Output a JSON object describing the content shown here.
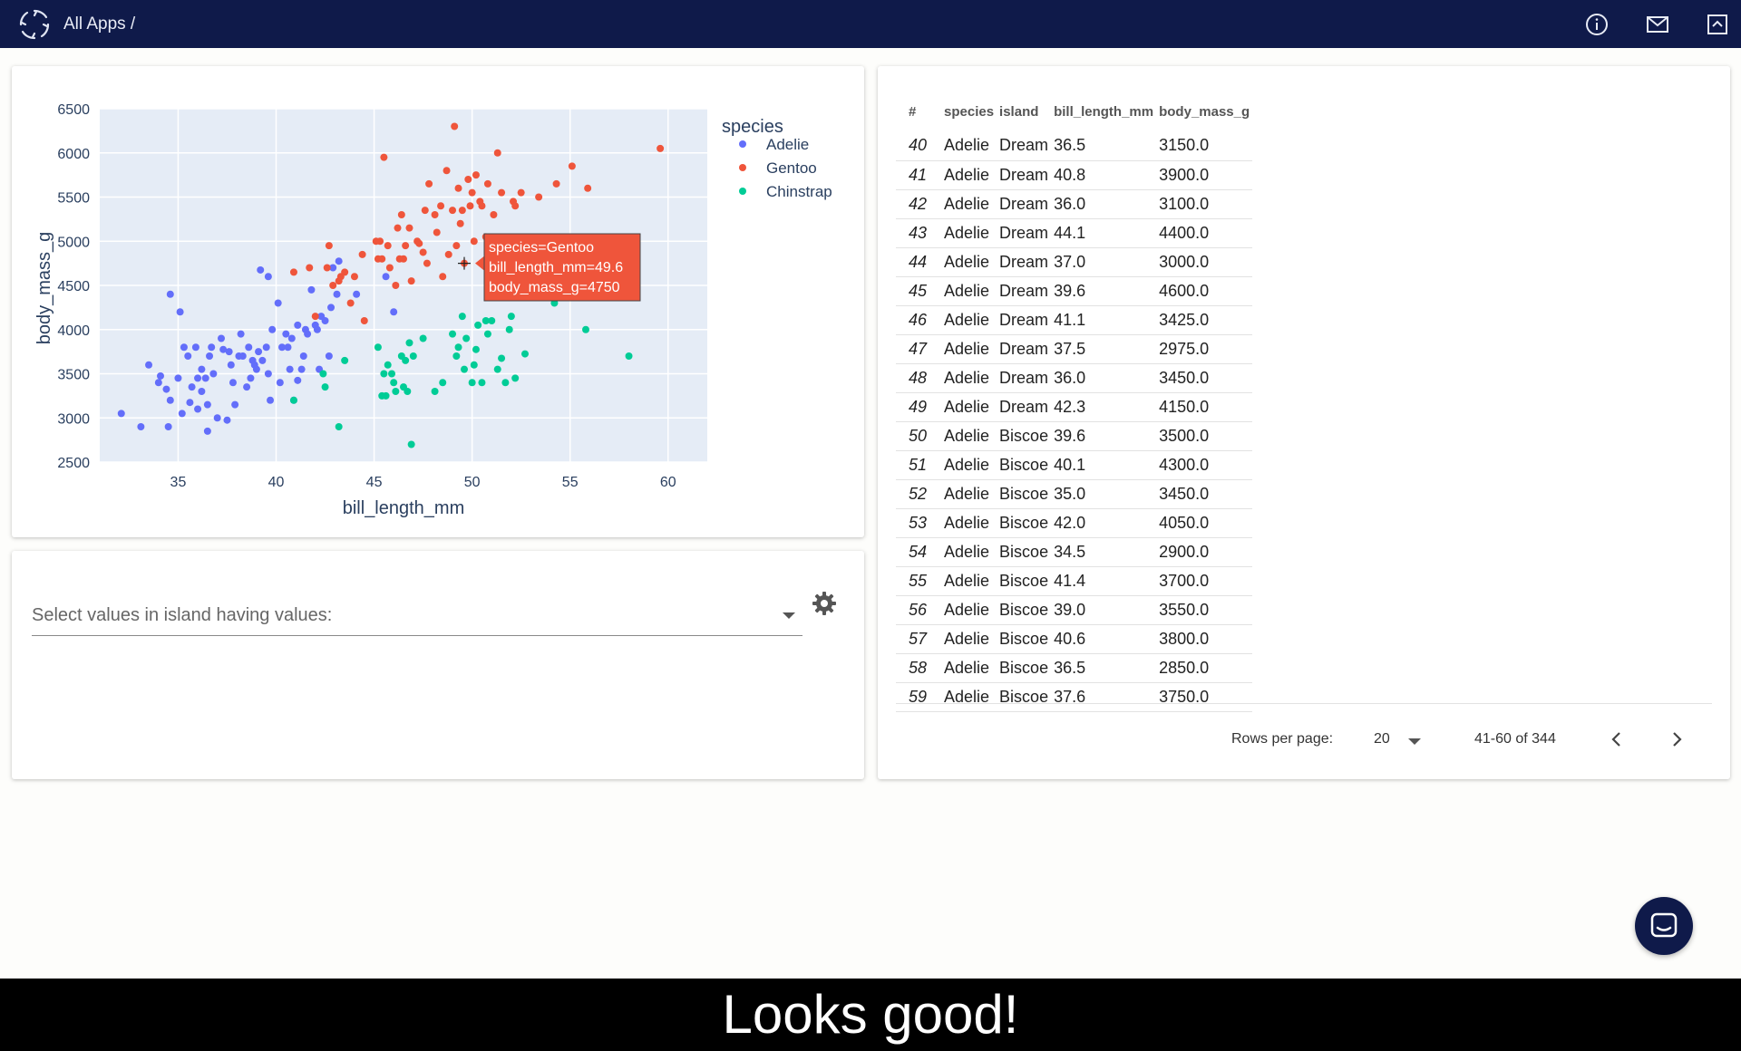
{
  "header": {
    "breadcrumb": "All Apps /",
    "icons": [
      "info-icon",
      "mail-icon",
      "collapse-icon"
    ],
    "bg_color": "#0f1a4a"
  },
  "chart_data": {
    "type": "scatter",
    "xlabel": "bill_length_mm",
    "ylabel": "body_mass_g",
    "xlim": [
      31,
      62
    ],
    "ylim": [
      2500,
      6500
    ],
    "xticks": [
      35,
      40,
      45,
      50,
      55,
      60
    ],
    "yticks": [
      2500,
      3000,
      3500,
      4000,
      4500,
      5000,
      5500,
      6000,
      6500
    ],
    "grid": true,
    "legend_title": "species",
    "legend_position": "top-right",
    "series": [
      {
        "name": "Adelie",
        "color": "#636efa",
        "points": [
          [
            32.1,
            3050
          ],
          [
            33.1,
            2900
          ],
          [
            33.5,
            3600
          ],
          [
            34.0,
            3400
          ],
          [
            34.1,
            3475
          ],
          [
            34.4,
            3325
          ],
          [
            34.5,
            2900
          ],
          [
            34.6,
            3200
          ],
          [
            34.6,
            4400
          ],
          [
            35.0,
            3450
          ],
          [
            35.1,
            4200
          ],
          [
            35.2,
            3050
          ],
          [
            35.3,
            3800
          ],
          [
            35.5,
            3700
          ],
          [
            35.6,
            3175
          ],
          [
            35.7,
            3350
          ],
          [
            35.9,
            3800
          ],
          [
            36.0,
            3100
          ],
          [
            36.0,
            3450
          ],
          [
            36.2,
            3550
          ],
          [
            36.2,
            3300
          ],
          [
            36.4,
            3450
          ],
          [
            36.5,
            3150
          ],
          [
            36.5,
            2850
          ],
          [
            36.6,
            3700
          ],
          [
            36.7,
            3800
          ],
          [
            36.8,
            3500
          ],
          [
            37.0,
            3000
          ],
          [
            37.2,
            3900
          ],
          [
            37.3,
            3775
          ],
          [
            37.5,
            2975
          ],
          [
            37.6,
            3750
          ],
          [
            37.7,
            3600
          ],
          [
            37.8,
            3400
          ],
          [
            37.9,
            3150
          ],
          [
            38.1,
            3700
          ],
          [
            38.2,
            3950
          ],
          [
            38.3,
            3700
          ],
          [
            38.5,
            3350
          ],
          [
            38.6,
            3800
          ],
          [
            38.7,
            3450
          ],
          [
            38.8,
            3650
          ],
          [
            38.9,
            3600
          ],
          [
            39.0,
            3550
          ],
          [
            39.1,
            3750
          ],
          [
            39.2,
            4675
          ],
          [
            39.3,
            3650
          ],
          [
            39.5,
            3800
          ],
          [
            39.6,
            3500
          ],
          [
            39.6,
            4600
          ],
          [
            39.7,
            3200
          ],
          [
            39.8,
            4000
          ],
          [
            40.1,
            4300
          ],
          [
            40.2,
            3400
          ],
          [
            40.3,
            3800
          ],
          [
            40.5,
            3950
          ],
          [
            40.6,
            3800
          ],
          [
            40.7,
            3550
          ],
          [
            40.8,
            3900
          ],
          [
            40.9,
            3200
          ],
          [
            41.1,
            3425
          ],
          [
            41.1,
            4050
          ],
          [
            41.3,
            3550
          ],
          [
            41.4,
            3700
          ],
          [
            41.5,
            4000
          ],
          [
            41.6,
            3950
          ],
          [
            41.8,
            4450
          ],
          [
            42.0,
            4050
          ],
          [
            42.1,
            4000
          ],
          [
            42.2,
            3550
          ],
          [
            42.3,
            4150
          ],
          [
            42.5,
            4100
          ],
          [
            42.7,
            3700
          ],
          [
            42.8,
            4250
          ],
          [
            42.9,
            4700
          ],
          [
            43.1,
            4400
          ],
          [
            43.2,
            4775
          ],
          [
            44.1,
            4400
          ],
          [
            45.6,
            4600
          ],
          [
            46.0,
            4200
          ]
        ]
      },
      {
        "name": "Gentoo",
        "color": "#ef553b",
        "points": [
          [
            40.9,
            4650
          ],
          [
            41.7,
            4700
          ],
          [
            42.0,
            4150
          ],
          [
            42.6,
            4700
          ],
          [
            42.7,
            4950
          ],
          [
            42.9,
            4500
          ],
          [
            43.2,
            4550
          ],
          [
            43.3,
            4600
          ],
          [
            43.5,
            4650
          ],
          [
            43.8,
            4300
          ],
          [
            44.0,
            4600
          ],
          [
            44.4,
            4850
          ],
          [
            44.5,
            4100
          ],
          [
            45.1,
            5000
          ],
          [
            45.2,
            4800
          ],
          [
            45.3,
            5000
          ],
          [
            45.4,
            4800
          ],
          [
            45.5,
            5950
          ],
          [
            45.7,
            4950
          ],
          [
            45.8,
            4700
          ],
          [
            46.1,
            4500
          ],
          [
            46.2,
            5150
          ],
          [
            46.3,
            4800
          ],
          [
            46.4,
            5300
          ],
          [
            46.5,
            4800
          ],
          [
            46.6,
            4950
          ],
          [
            46.8,
            5150
          ],
          [
            46.9,
            4550
          ],
          [
            47.2,
            5000
          ],
          [
            47.3,
            4975
          ],
          [
            47.5,
            4875
          ],
          [
            47.6,
            5350
          ],
          [
            47.7,
            4750
          ],
          [
            47.8,
            5650
          ],
          [
            48.1,
            5300
          ],
          [
            48.2,
            5100
          ],
          [
            48.4,
            5400
          ],
          [
            48.5,
            4600
          ],
          [
            48.7,
            5800
          ],
          [
            48.8,
            4850
          ],
          [
            49.0,
            5350
          ],
          [
            49.1,
            6300
          ],
          [
            49.2,
            4950
          ],
          [
            49.3,
            5600
          ],
          [
            49.4,
            5200
          ],
          [
            49.5,
            5350
          ],
          [
            49.6,
            4750
          ],
          [
            49.8,
            5700
          ],
          [
            49.9,
            5400
          ],
          [
            50.0,
            5550
          ],
          [
            50.1,
            5000
          ],
          [
            50.2,
            5750
          ],
          [
            50.4,
            5450
          ],
          [
            50.5,
            5400
          ],
          [
            50.7,
            5050
          ],
          [
            50.8,
            5650
          ],
          [
            51.1,
            5300
          ],
          [
            51.3,
            6000
          ],
          [
            51.5,
            5550
          ],
          [
            52.1,
            5450
          ],
          [
            52.2,
            5400
          ],
          [
            52.5,
            5550
          ],
          [
            53.4,
            5500
          ],
          [
            54.3,
            5650
          ],
          [
            55.1,
            5850
          ],
          [
            55.9,
            5600
          ],
          [
            59.6,
            6050
          ]
        ]
      },
      {
        "name": "Chinstrap",
        "color": "#00cc96",
        "points": [
          [
            40.9,
            3200
          ],
          [
            42.4,
            3500
          ],
          [
            42.5,
            3350
          ],
          [
            43.2,
            2900
          ],
          [
            43.5,
            3650
          ],
          [
            45.2,
            3800
          ],
          [
            45.4,
            3250
          ],
          [
            45.5,
            3500
          ],
          [
            45.6,
            3250
          ],
          [
            45.7,
            3600
          ],
          [
            45.9,
            3500
          ],
          [
            46.0,
            3400
          ],
          [
            46.1,
            3300
          ],
          [
            46.4,
            3700
          ],
          [
            46.5,
            3350
          ],
          [
            46.6,
            3650
          ],
          [
            46.7,
            3300
          ],
          [
            46.8,
            3850
          ],
          [
            46.9,
            2700
          ],
          [
            47.0,
            3700
          ],
          [
            47.5,
            3900
          ],
          [
            48.1,
            3300
          ],
          [
            48.5,
            3400
          ],
          [
            49.0,
            3950
          ],
          [
            49.2,
            3700
          ],
          [
            49.3,
            3800
          ],
          [
            49.5,
            4150
          ],
          [
            49.6,
            3550
          ],
          [
            49.7,
            3900
          ],
          [
            50.0,
            3400
          ],
          [
            50.1,
            3600
          ],
          [
            50.2,
            3775
          ],
          [
            50.3,
            4050
          ],
          [
            50.5,
            3400
          ],
          [
            50.7,
            4100
          ],
          [
            50.8,
            3950
          ],
          [
            51.0,
            4100
          ],
          [
            51.3,
            3550
          ],
          [
            51.5,
            3675
          ],
          [
            51.7,
            3400
          ],
          [
            51.9,
            4000
          ],
          [
            52.0,
            4150
          ],
          [
            52.2,
            3450
          ],
          [
            52.7,
            3725
          ],
          [
            54.2,
            4300
          ],
          [
            55.8,
            4000
          ],
          [
            58.0,
            3700
          ]
        ]
      }
    ],
    "tooltip": {
      "lines": [
        "species=Gentoo",
        "bill_length_mm=49.6",
        "body_mass_g=4750"
      ],
      "x": 49.6,
      "y": 4750,
      "color": "#ef553b"
    },
    "plot_bg": "#e5ecf6"
  },
  "filter": {
    "placeholder": "Select values in island having values:"
  },
  "table": {
    "headers": [
      "#",
      "species",
      "island",
      "bill_length_mm",
      "body_mass_g"
    ],
    "rows": [
      [
        "40",
        "Adelie",
        "Dream",
        "36.5",
        "3150.0"
      ],
      [
        "41",
        "Adelie",
        "Dream",
        "40.8",
        "3900.0"
      ],
      [
        "42",
        "Adelie",
        "Dream",
        "36.0",
        "3100.0"
      ],
      [
        "43",
        "Adelie",
        "Dream",
        "44.1",
        "4400.0"
      ],
      [
        "44",
        "Adelie",
        "Dream",
        "37.0",
        "3000.0"
      ],
      [
        "45",
        "Adelie",
        "Dream",
        "39.6",
        "4600.0"
      ],
      [
        "46",
        "Adelie",
        "Dream",
        "41.1",
        "3425.0"
      ],
      [
        "47",
        "Adelie",
        "Dream",
        "37.5",
        "2975.0"
      ],
      [
        "48",
        "Adelie",
        "Dream",
        "36.0",
        "3450.0"
      ],
      [
        "49",
        "Adelie",
        "Dream",
        "42.3",
        "4150.0"
      ],
      [
        "50",
        "Adelie",
        "Biscoe",
        "39.6",
        "3500.0"
      ],
      [
        "51",
        "Adelie",
        "Biscoe",
        "40.1",
        "4300.0"
      ],
      [
        "52",
        "Adelie",
        "Biscoe",
        "35.0",
        "3450.0"
      ],
      [
        "53",
        "Adelie",
        "Biscoe",
        "42.0",
        "4050.0"
      ],
      [
        "54",
        "Adelie",
        "Biscoe",
        "34.5",
        "2900.0"
      ],
      [
        "55",
        "Adelie",
        "Biscoe",
        "41.4",
        "3700.0"
      ],
      [
        "56",
        "Adelie",
        "Biscoe",
        "39.0",
        "3550.0"
      ],
      [
        "57",
        "Adelie",
        "Biscoe",
        "40.6",
        "3800.0"
      ],
      [
        "58",
        "Adelie",
        "Biscoe",
        "36.5",
        "2850.0"
      ],
      [
        "59",
        "Adelie",
        "Biscoe",
        "37.6",
        "3750.0"
      ]
    ],
    "pagination": {
      "rows_per_page_label": "Rows per page:",
      "rows_per_page": "20",
      "range": "41-60 of 344"
    }
  },
  "caption": "Looks good!"
}
